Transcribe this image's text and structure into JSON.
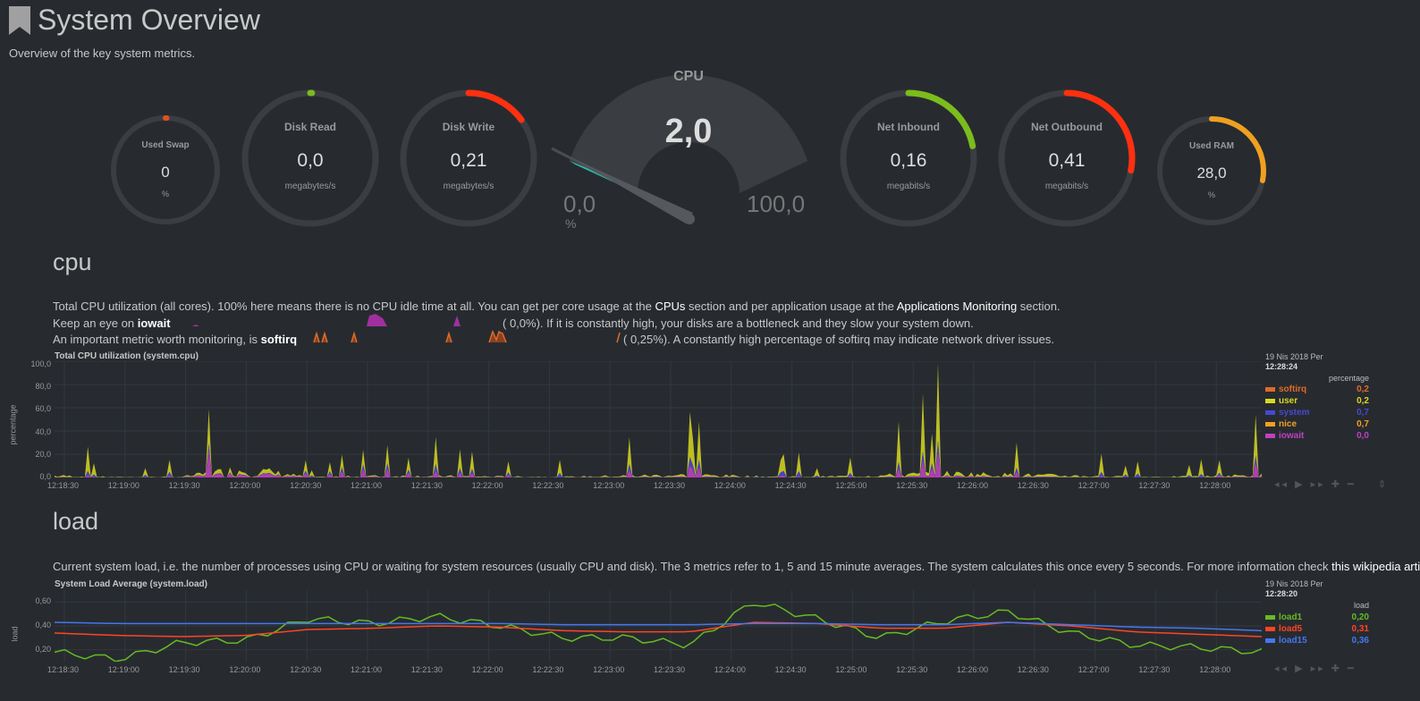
{
  "page": {
    "title": "System Overview",
    "subtitle": "Overview of the key system metrics."
  },
  "gauges": {
    "swap": {
      "label": "Used Swap",
      "value": "0",
      "unit": "%",
      "fraction": 0.0,
      "color": "#e05020"
    },
    "disk_read": {
      "label": "Disk Read",
      "value": "0,0",
      "unit": "megabytes/s",
      "fraction": 0.0,
      "color": "#7cbc1c"
    },
    "disk_write": {
      "label": "Disk Write",
      "value": "0,21",
      "unit": "megabytes/s",
      "fraction": 0.15,
      "color": "#ff3010"
    },
    "cpu": {
      "label": "CPU",
      "value": "2,0",
      "min": "0,0",
      "max": "100,0",
      "unit": "%",
      "fraction": 0.02
    },
    "net_in": {
      "label": "Net Inbound",
      "value": "0,16",
      "unit": "megabits/s",
      "fraction": 0.22,
      "color": "#7cbc1c"
    },
    "net_out": {
      "label": "Net Outbound",
      "value": "0,41",
      "unit": "megabits/s",
      "fraction": 0.28,
      "color": "#ff3010"
    },
    "ram": {
      "label": "Used RAM",
      "value": "28,0",
      "unit": "%",
      "fraction": 0.28,
      "color": "#f0a020"
    }
  },
  "cpu_section": {
    "heading": "cpu",
    "line1_a": "Total CPU utilization (all cores). 100% here means there is no CPU idle time at all. You can get per core usage at the ",
    "line1_link1": "CPUs",
    "line1_b": " section and per application usage at the ",
    "line1_link2": "Applications Monitoring",
    "line1_c": " section.",
    "line2_a": "Keep an eye on ",
    "line2_hl": "iowait",
    "line2_b": "(      0,0%). If it is constantly high, your disks are a bottleneck and they slow your system down.",
    "line3_a": "An important metric worth monitoring, is ",
    "line3_hl": "softirq",
    "line3_b": "(      0,25%). A constantly high percentage of softirq may indicate network driver issues."
  },
  "cpu_chart": {
    "title": "Total CPU utilization (system.cpu)",
    "ylabel": "percentage",
    "yticks": [
      "100,0",
      "80,0",
      "60,0",
      "40,0",
      "20,0",
      "0,0"
    ],
    "xticks": [
      "12:18:30",
      "12:19:00",
      "12:19:30",
      "12:20:00",
      "12:20:30",
      "12:21:00",
      "12:21:30",
      "12:22:00",
      "12:22:30",
      "12:23:00",
      "12:23:30",
      "12:24:00",
      "12:24:30",
      "12:25:00",
      "12:25:30",
      "12:26:00",
      "12:26:30",
      "12:27:00",
      "12:27:30",
      "12:28:00"
    ],
    "date": "19 Nis 2018 Per",
    "time": "12:28:24",
    "units": "percentage",
    "legend": [
      {
        "name": "softirq",
        "value": "0,2",
        "color": "#e06a28"
      },
      {
        "name": "user",
        "value": "0,2",
        "color": "#d8d820"
      },
      {
        "name": "system",
        "value": "0,7",
        "color": "#4848d0"
      },
      {
        "name": "nice",
        "value": "0,7",
        "color": "#f0a020"
      },
      {
        "name": "iowait",
        "value": "0,0",
        "color": "#c040c0"
      }
    ]
  },
  "load_section": {
    "heading": "load",
    "desc": "Current system load, i.e. the number of processes using CPU or waiting for system resources (usually CPU and disk). The 3 metrics refer to 1, 5 and 15 minute averages. The system calculates this once every 5 seconds. For more information check ",
    "link": "this wikipedia article"
  },
  "load_chart": {
    "title": "System Load Average (system.load)",
    "ylabel": "load",
    "yticks": [
      "0,60",
      "0,40",
      "0,20"
    ],
    "xticks": [
      "12:18:30",
      "12:19:00",
      "12:19:30",
      "12:20:00",
      "12:20:30",
      "12:21:00",
      "12:21:30",
      "12:22:00",
      "12:22:30",
      "12:23:00",
      "12:23:30",
      "12:24:00",
      "12:24:30",
      "12:25:00",
      "12:25:30",
      "12:26:00",
      "12:26:30",
      "12:27:00",
      "12:27:30",
      "12:28:00"
    ],
    "date": "19 Nis 2018 Per",
    "time": "12:28:20",
    "units": "load",
    "legend": [
      {
        "name": "load1",
        "value": "0,20",
        "color": "#66bb22"
      },
      {
        "name": "load5",
        "value": "0,31",
        "color": "#ff4422"
      },
      {
        "name": "load15",
        "value": "0,36",
        "color": "#4477ee"
      }
    ]
  },
  "chart_data": [
    {
      "type": "area",
      "title": "Total CPU utilization (system.cpu)",
      "ylabel": "percentage",
      "ylim": [
        0,
        100
      ],
      "x": [
        "12:18:30",
        "12:19:00",
        "12:19:30",
        "12:20:00",
        "12:20:30",
        "12:21:00",
        "12:21:30",
        "12:22:00",
        "12:22:30",
        "12:23:00",
        "12:23:30",
        "12:24:00",
        "12:24:30",
        "12:25:00",
        "12:25:30",
        "12:26:00",
        "12:26:30",
        "12:27:00",
        "12:27:30",
        "12:28:00"
      ],
      "series": [
        {
          "name": "user",
          "values": [
            18,
            4,
            6,
            55,
            3,
            10,
            12,
            8,
            6,
            14,
            22,
            10,
            8,
            20,
            35,
            25,
            18,
            6,
            10,
            20
          ]
        },
        {
          "name": "system",
          "values": [
            3,
            1,
            2,
            8,
            1,
            3,
            3,
            2,
            2,
            3,
            4,
            3,
            2,
            3,
            5,
            4,
            3,
            2,
            2,
            3
          ]
        },
        {
          "name": "iowait",
          "values": [
            2,
            0,
            1,
            48,
            0,
            6,
            3,
            2,
            0,
            4,
            6,
            2,
            0,
            3,
            12,
            6,
            2,
            0,
            0,
            8
          ]
        }
      ]
    },
    {
      "type": "line",
      "title": "System Load Average (system.load)",
      "ylabel": "load",
      "x": [
        "12:18:30",
        "12:19:00",
        "12:19:30",
        "12:20:00",
        "12:20:30",
        "12:21:00",
        "12:21:30",
        "12:22:00",
        "12:22:30",
        "12:23:00",
        "12:23:30",
        "12:24:00",
        "12:24:30",
        "12:25:00",
        "12:25:30",
        "12:26:00",
        "12:26:30",
        "12:27:00",
        "12:27:30",
        "12:28:00"
      ],
      "series": [
        {
          "name": "load1",
          "values": [
            0.18,
            0.12,
            0.26,
            0.28,
            0.46,
            0.42,
            0.48,
            0.4,
            0.3,
            0.3,
            0.24,
            0.6,
            0.46,
            0.3,
            0.44,
            0.52,
            0.34,
            0.24,
            0.22,
            0.18
          ]
        },
        {
          "name": "load5",
          "values": [
            0.34,
            0.32,
            0.31,
            0.32,
            0.37,
            0.38,
            0.4,
            0.39,
            0.36,
            0.35,
            0.35,
            0.43,
            0.42,
            0.38,
            0.38,
            0.43,
            0.4,
            0.35,
            0.33,
            0.31
          ]
        },
        {
          "name": "load15",
          "values": [
            0.43,
            0.42,
            0.42,
            0.42,
            0.42,
            0.42,
            0.42,
            0.42,
            0.41,
            0.41,
            0.41,
            0.42,
            0.42,
            0.41,
            0.41,
            0.43,
            0.41,
            0.39,
            0.38,
            0.36
          ]
        }
      ]
    }
  ]
}
